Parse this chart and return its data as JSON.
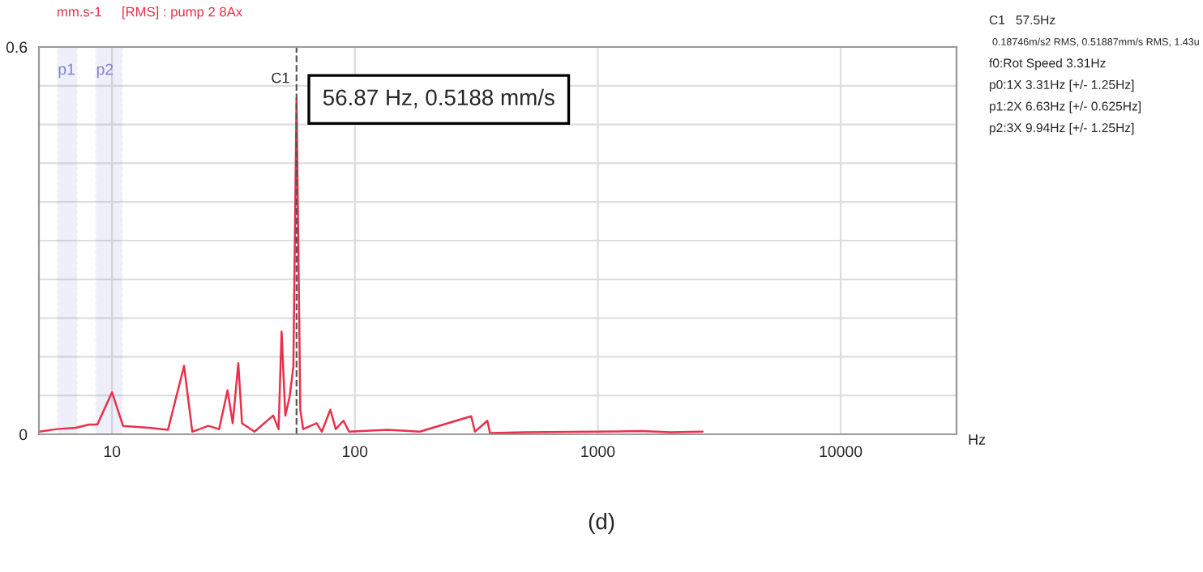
{
  "chart_data": {
    "type": "line",
    "title": "[RMS] : pump 2 8Ax",
    "ylabel": "mm.s-1",
    "xlabel": "Hz",
    "x": [
      5.03,
      5.92,
      7.09,
      8.06,
      8.7,
      10,
      11.1,
      14.2,
      17.0,
      19.8,
      21.4,
      24.9,
      27.6,
      29.9,
      31.4,
      33.1,
      34.3,
      38.6,
      46.1,
      48.5,
      49.9,
      51.7,
      53.9,
      55.8,
      57.5,
      59.6,
      61.2,
      69.6,
      73.1,
      79.2,
      83.4,
      89.7,
      94.7,
      136,
      185,
      301,
      312,
      351,
      360,
      500,
      1000,
      1500,
      2000,
      2700
    ],
    "series": [
      {
        "color": "#e8304a",
        "values": [
          0.004,
          0.008,
          0.01,
          0.015,
          0.015,
          0.065,
          0.013,
          0.01,
          0.007,
          0.106,
          0.004,
          0.013,
          0.008,
          0.068,
          0.017,
          0.11,
          0.017,
          0.004,
          0.029,
          0.008,
          0.159,
          0.029,
          0.059,
          0.105,
          0.52,
          0.038,
          0.008,
          0.017,
          0.004,
          0.038,
          0.008,
          0.021,
          0.004,
          0.007,
          0.004,
          0.028,
          0.004,
          0.021,
          0.002,
          0.003,
          0.004,
          0.005,
          0.003,
          0.004
        ]
      }
    ],
    "log": "x",
    "xlim": [
      5,
      30000
    ],
    "xticks": [
      10,
      100,
      1000,
      10000
    ],
    "ylim": [
      0,
      0.6
    ],
    "yticks": [
      0,
      {
        "value": 0.06,
        "label": null
      },
      {
        "value": 0.12,
        "label": null
      },
      {
        "value": 0.18,
        "label": null
      },
      {
        "value": 0.24,
        "label": null
      },
      {
        "value": 0.3,
        "label": null
      },
      {
        "value": 0.36,
        "label": null
      },
      {
        "value": 0.42,
        "label": null
      },
      {
        "value": 0.48,
        "label": null
      },
      {
        "value": 0.54,
        "label": null
      },
      0.6
    ],
    "grid": true,
    "marker": "none",
    "line_style": "solid",
    "ref_lines": [
      {
        "axis": "x",
        "value": 57.5,
        "color": "#555555",
        "line_style": "dashed"
      }
    ],
    "bands": [
      {
        "axis": "x",
        "from": 5.98,
        "to": 7.16,
        "label": "p1",
        "color": "#8080d0"
      },
      {
        "axis": "x",
        "from": 8.6,
        "to": 11.0,
        "label": "p2",
        "color": "#8080d0"
      }
    ],
    "annotations": [
      {
        "text": "56.87 Hz, 0.5188 mm/s",
        "x": 56.87,
        "y": 0.5188
      },
      {
        "text": "C1",
        "x": 57.5,
        "y": 0.5188
      },
      "C1   57.5Hz",
      "0.18746m/s2 RMS, 0.51887mm/s RMS, 1.43u",
      "f0:Rot Speed 3.31Hz",
      "p0:1X 3.31Hz [+/- 1.25Hz]",
      "p1:2X 6.63Hz [+/- 0.625Hz]",
      "p2:3X 9.94Hz [+/- 1.25Hz]",
      "(d)"
    ]
  }
}
